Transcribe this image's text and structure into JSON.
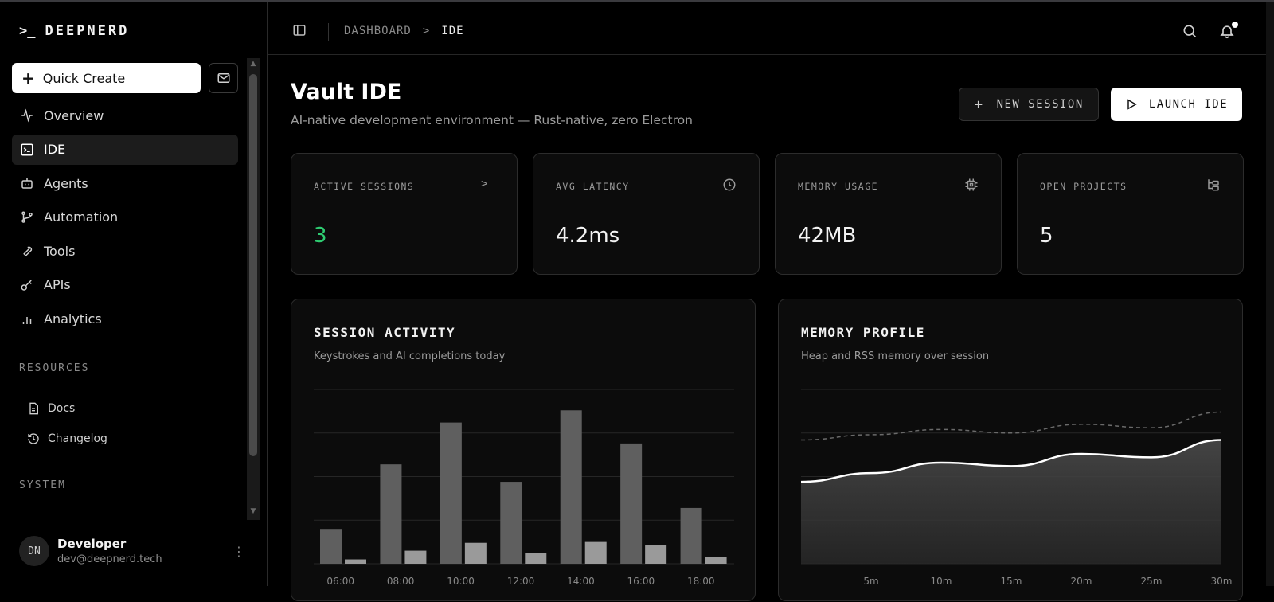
{
  "brand": {
    "prompt": ">_",
    "name": "DEEPNERD"
  },
  "sidebar": {
    "quick_create": "Quick Create",
    "items": [
      {
        "label": "Overview",
        "icon": "activity-icon"
      },
      {
        "label": "IDE",
        "icon": "terminal-square-icon",
        "active": true
      },
      {
        "label": "Agents",
        "icon": "bot-icon"
      },
      {
        "label": "Automation",
        "icon": "git-branch-icon"
      },
      {
        "label": "Tools",
        "icon": "wrench-icon"
      },
      {
        "label": "APIs",
        "icon": "key-icon"
      },
      {
        "label": "Analytics",
        "icon": "bar-chart-icon"
      }
    ],
    "resources_title": "RESOURCES",
    "resources": [
      {
        "label": "Docs",
        "icon": "file-text-icon"
      },
      {
        "label": "Changelog",
        "icon": "history-icon"
      }
    ],
    "system_title": "SYSTEM"
  },
  "user": {
    "initials": "DN",
    "name": "Developer",
    "email": "dev@deepnerd.tech"
  },
  "header": {
    "crumb_root": "DASHBOARD",
    "crumb_sep": ">",
    "crumb_current": "IDE"
  },
  "page": {
    "title": "Vault IDE",
    "subtitle": "AI-native development environment — Rust-native, zero Electron",
    "new_session": "NEW SESSION",
    "launch_ide": "LAUNCH IDE"
  },
  "stats": [
    {
      "label": "ACTIVE SESSIONS",
      "value": "3",
      "icon": "terminal-icon",
      "accent": "#2ecc71"
    },
    {
      "label": "AVG LATENCY",
      "value": "4.2ms",
      "icon": "clock-icon"
    },
    {
      "label": "MEMORY USAGE",
      "value": "42MB",
      "icon": "cpu-icon"
    },
    {
      "label": "OPEN PROJECTS",
      "value": "5",
      "icon": "folder-tree-icon"
    }
  ],
  "session_panel": {
    "title": "SESSION ACTIVITY",
    "subtitle": "Keystrokes and AI completions today"
  },
  "memory_panel": {
    "title": "MEMORY PROFILE",
    "subtitle": "Heap and RSS memory over session"
  },
  "chart_data": [
    {
      "type": "bar",
      "title": "SESSION ACTIVITY",
      "categories": [
        "06:00",
        "08:00",
        "10:00",
        "12:00",
        "14:00",
        "16:00",
        "18:00"
      ],
      "series": [
        {
          "values": [
            40,
            114,
            162,
            94,
            176,
            138,
            64
          ]
        },
        {
          "values": [
            5,
            15,
            24,
            12,
            25,
            21,
            8
          ]
        }
      ],
      "ylim": [
        0,
        200
      ],
      "grid": true
    },
    {
      "type": "area",
      "title": "MEMORY PROFILE",
      "x": [
        "",
        "5m",
        "10m",
        "15m",
        "20m",
        "25m",
        "30m"
      ],
      "series": [
        {
          "values": [
            47,
            52,
            58,
            56,
            63,
            61,
            71
          ]
        },
        {
          "values": [
            71,
            74,
            77,
            75,
            80,
            78,
            87
          ]
        }
      ],
      "ylim": [
        0,
        100
      ],
      "grid": true
    }
  ],
  "colors": {
    "bar_primary": "#5f5f5f",
    "bar_secondary": "#9a9a9a",
    "accent_green": "#2ecc71"
  }
}
